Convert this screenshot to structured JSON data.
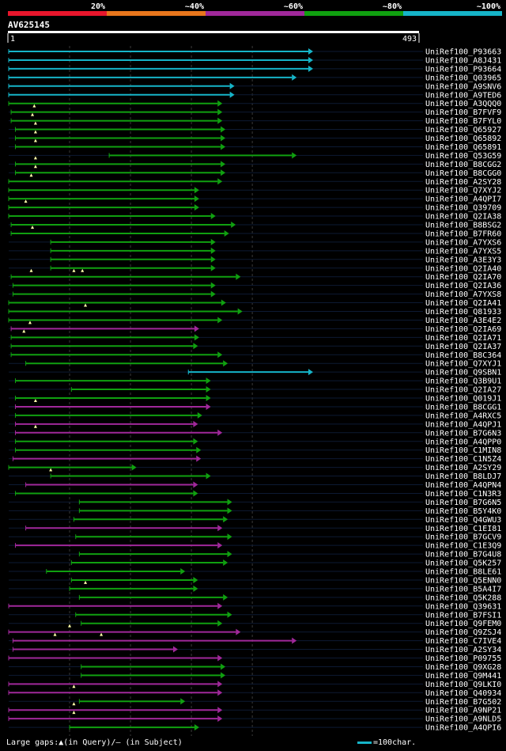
{
  "chart_data": {
    "type": "alignment-overview",
    "query_id": "AV625145",
    "query_start": "1",
    "query_end": "493",
    "query_length": 493,
    "identity_scale": [
      {
        "label": "20%",
        "color": "#e8162c"
      },
      {
        "label": "~40%",
        "color": "#e8761c"
      },
      {
        "label": "~60%",
        "color": "#a0289a"
      },
      {
        "label": "~80%",
        "color": "#10a010"
      },
      {
        "label": "~100%",
        "color": "#16b4c8"
      }
    ],
    "hits": [
      {
        "id": "UniRef100_P93663",
        "identity": "~100%",
        "start": 1,
        "end": 493
      },
      {
        "id": "UniRef100_A8J431",
        "identity": "~100%",
        "start": 1,
        "end": 493
      },
      {
        "id": "UniRef100_P93664",
        "identity": "~100%",
        "start": 1,
        "end": 493
      },
      {
        "id": "UniRef100_Q03965",
        "identity": "~100%",
        "start": 1,
        "end": 466
      },
      {
        "id": "UniRef100_A9SNV6",
        "identity": "~100%",
        "start": 1,
        "end": 364
      },
      {
        "id": "UniRef100_A9TED6",
        "identity": "~100%",
        "start": 1,
        "end": 364
      },
      {
        "id": "UniRef100_A3QQQ0",
        "identity": "~80%",
        "start": 1,
        "end": 344
      },
      {
        "id": "UniRef100_B7FVF9",
        "identity": "~80%",
        "start": 5,
        "end": 344,
        "gaps": [
          43
        ]
      },
      {
        "id": "UniRef100_B7FYL0",
        "identity": "~80%",
        "start": 5,
        "end": 344,
        "gaps": [
          40
        ]
      },
      {
        "id": "UniRef100_Q65927",
        "identity": "~80%",
        "start": 12,
        "end": 349,
        "gaps": [
          45
        ]
      },
      {
        "id": "UniRef100_Q65892",
        "identity": "~80%",
        "start": 12,
        "end": 349,
        "gaps": [
          45
        ]
      },
      {
        "id": "UniRef100_Q65891",
        "identity": "~80%",
        "start": 12,
        "end": 349,
        "gaps": [
          45
        ]
      },
      {
        "id": "UniRef100_Q53G59",
        "identity": "~80%",
        "start": 166,
        "end": 466
      },
      {
        "id": "UniRef100_B8CGG2",
        "identity": "~80%",
        "start": 12,
        "end": 349,
        "gaps": [
          45
        ]
      },
      {
        "id": "UniRef100_B8CGG0",
        "identity": "~80%",
        "start": 12,
        "end": 349,
        "gaps": [
          45
        ]
      },
      {
        "id": "UniRef100_A2SY28",
        "identity": "~80%",
        "start": 1,
        "end": 344,
        "gaps": [
          38
        ]
      },
      {
        "id": "UniRef100_Q7XYJ2",
        "identity": "~80%",
        "start": 1,
        "end": 306
      },
      {
        "id": "UniRef100_A4QPI7",
        "identity": "~80%",
        "start": 1,
        "end": 306
      },
      {
        "id": "UniRef100_Q39709",
        "identity": "~80%",
        "start": 1,
        "end": 306,
        "gaps": [
          29
        ]
      },
      {
        "id": "UniRef100_Q2IA38",
        "identity": "~80%",
        "start": 1,
        "end": 333
      },
      {
        "id": "UniRef100_B8BSG2",
        "identity": "~80%",
        "start": 5,
        "end": 366
      },
      {
        "id": "UniRef100_B7FR60",
        "identity": "~80%",
        "start": 5,
        "end": 355,
        "gaps": [
          40
        ]
      },
      {
        "id": "UniRef100_A7YXS6",
        "identity": "~80%",
        "start": 70,
        "end": 333
      },
      {
        "id": "UniRef100_A7YXS5",
        "identity": "~80%",
        "start": 70,
        "end": 333
      },
      {
        "id": "UniRef100_A3E3Y3",
        "identity": "~80%",
        "start": 70,
        "end": 333
      },
      {
        "id": "UniRef100_Q2IA40",
        "identity": "~80%",
        "start": 70,
        "end": 333
      },
      {
        "id": "UniRef100_Q2IA70",
        "identity": "~80%",
        "start": 5,
        "end": 374,
        "gaps": [
          38,
          108,
          122
        ]
      },
      {
        "id": "UniRef100_Q2IA36",
        "identity": "~80%",
        "start": 8,
        "end": 333
      },
      {
        "id": "UniRef100_A7YXS8",
        "identity": "~80%",
        "start": 8,
        "end": 333
      },
      {
        "id": "UniRef100_Q2IA41",
        "identity": "~80%",
        "start": 1,
        "end": 350
      },
      {
        "id": "UniRef100_Q81933",
        "identity": "~80%",
        "start": 1,
        "end": 377,
        "gaps": [
          127
        ]
      },
      {
        "id": "UniRef100_A3E4E2",
        "identity": "~80%",
        "start": 1,
        "end": 344
      },
      {
        "id": "UniRef100_Q2IA69",
        "identity": "~60%",
        "start": 5,
        "end": 306,
        "gaps": [
          36
        ]
      },
      {
        "id": "UniRef100_Q2IA71",
        "identity": "~80%",
        "start": 5,
        "end": 306,
        "gaps": [
          26
        ]
      },
      {
        "id": "UniRef100_Q2IA37",
        "identity": "~80%",
        "start": 5,
        "end": 304
      },
      {
        "id": "UniRef100_B8C364",
        "identity": "~80%",
        "start": 5,
        "end": 344
      },
      {
        "id": "UniRef100_Q7XYJ1",
        "identity": "~80%",
        "start": 29,
        "end": 353
      },
      {
        "id": "UniRef100_Q9SBN1",
        "identity": "~100%",
        "start": 296,
        "end": 493
      },
      {
        "id": "UniRef100_Q3B9U1",
        "identity": "~80%",
        "start": 12,
        "end": 325
      },
      {
        "id": "UniRef100_Q2IA27",
        "identity": "~80%",
        "start": 104,
        "end": 325
      },
      {
        "id": "UniRef100_Q019J1",
        "identity": "~80%",
        "start": 12,
        "end": 325
      },
      {
        "id": "UniRef100_B8CGG1",
        "identity": "~60%",
        "start": 12,
        "end": 325,
        "gaps": [
          45
        ]
      },
      {
        "id": "UniRef100_A4RXC5",
        "identity": "~80%",
        "start": 12,
        "end": 311
      },
      {
        "id": "UniRef100_A4QPJ1",
        "identity": "~60%",
        "start": 12,
        "end": 304
      },
      {
        "id": "UniRef100_B7G6N3",
        "identity": "~60%",
        "start": 12,
        "end": 344,
        "gaps": [
          45
        ]
      },
      {
        "id": "UniRef100_A4QPP0",
        "identity": "~80%",
        "start": 12,
        "end": 304
      },
      {
        "id": "UniRef100_C1MIN8",
        "identity": "~80%",
        "start": 12,
        "end": 309
      },
      {
        "id": "UniRef100_C1N5Z4",
        "identity": "~60%",
        "start": 8,
        "end": 309
      },
      {
        "id": "UniRef100_A2SY29",
        "identity": "~80%",
        "start": 1,
        "end": 203
      },
      {
        "id": "UniRef100_B8LDJ7",
        "identity": "~80%",
        "start": 70,
        "end": 325,
        "gaps": [
          70
        ]
      },
      {
        "id": "UniRef100_A4QPN4",
        "identity": "~60%",
        "start": 29,
        "end": 304
      },
      {
        "id": "UniRef100_C1N3R3",
        "identity": "~80%",
        "start": 12,
        "end": 304
      },
      {
        "id": "UniRef100_B7G6N5",
        "identity": "~80%",
        "start": 117,
        "end": 360
      },
      {
        "id": "UniRef100_B5Y4K0",
        "identity": "~80%",
        "start": 117,
        "end": 360
      },
      {
        "id": "UniRef100_Q4GWU3",
        "identity": "~80%",
        "start": 108,
        "end": 353
      },
      {
        "id": "UniRef100_C1EI81",
        "identity": "~60%",
        "start": 29,
        "end": 344
      },
      {
        "id": "UniRef100_B7GCV9",
        "identity": "~80%",
        "start": 111,
        "end": 360
      },
      {
        "id": "UniRef100_C1E3Q9",
        "identity": "~60%",
        "start": 12,
        "end": 344
      },
      {
        "id": "UniRef100_B7G4U8",
        "identity": "~80%",
        "start": 117,
        "end": 360
      },
      {
        "id": "UniRef100_Q5K257",
        "identity": "~80%",
        "start": 104,
        "end": 353
      },
      {
        "id": "UniRef100_B8LE61",
        "identity": "~80%",
        "start": 63,
        "end": 283
      },
      {
        "id": "UniRef100_Q5ENN0",
        "identity": "~80%",
        "start": 104,
        "end": 304
      },
      {
        "id": "UniRef100_B5A4I7",
        "identity": "~80%",
        "start": 101,
        "end": 304,
        "gaps": [
          127
        ]
      },
      {
        "id": "UniRef100_Q5K288",
        "identity": "~80%",
        "start": 117,
        "end": 353
      },
      {
        "id": "UniRef100_Q39631",
        "identity": "~60%",
        "start": 1,
        "end": 344
      },
      {
        "id": "UniRef100_B7FSI1",
        "identity": "~80%",
        "start": 111,
        "end": 360
      },
      {
        "id": "UniRef100_Q9FEM0",
        "identity": "~80%",
        "start": 120,
        "end": 344
      },
      {
        "id": "UniRef100_Q9ZSJ4",
        "identity": "~60%",
        "start": 1,
        "end": 374,
        "gaps": [
          101
        ]
      },
      {
        "id": "UniRef100_C7IVE4",
        "identity": "~60%",
        "start": 8,
        "end": 466,
        "gaps": [
          77,
          153
        ]
      },
      {
        "id": "UniRef100_A2SY34",
        "identity": "~60%",
        "start": 8,
        "end": 271
      },
      {
        "id": "UniRef100_P09755",
        "identity": "~60%",
        "start": 1,
        "end": 344
      },
      {
        "id": "UniRef100_Q9XG28",
        "identity": "~80%",
        "start": 120,
        "end": 349
      },
      {
        "id": "UniRef100_Q9M441",
        "identity": "~80%",
        "start": 120,
        "end": 349
      },
      {
        "id": "UniRef100_Q9LKI0",
        "identity": "~60%",
        "start": 1,
        "end": 344
      },
      {
        "id": "UniRef100_Q40934",
        "identity": "~60%",
        "start": 1,
        "end": 344,
        "gaps": [
          108
        ]
      },
      {
        "id": "UniRef100_B7G502",
        "identity": "~80%",
        "start": 117,
        "end": 283
      },
      {
        "id": "UniRef100_A9NP21",
        "identity": "~60%",
        "start": 1,
        "end": 344,
        "gaps": [
          108
        ]
      },
      {
        "id": "UniRef100_A9NLD5",
        "identity": "~60%",
        "start": 1,
        "end": 344,
        "gaps": [
          108
        ]
      },
      {
        "id": "UniRef100_A4QPI6",
        "identity": "~80%",
        "start": 101,
        "end": 306
      }
    ]
  },
  "legend": {
    "large_gaps_text": "Large gaps:▲(in Query)/– (in Subject)",
    "scale_text": "=100char.",
    "scale_color": "#16b4c8"
  }
}
